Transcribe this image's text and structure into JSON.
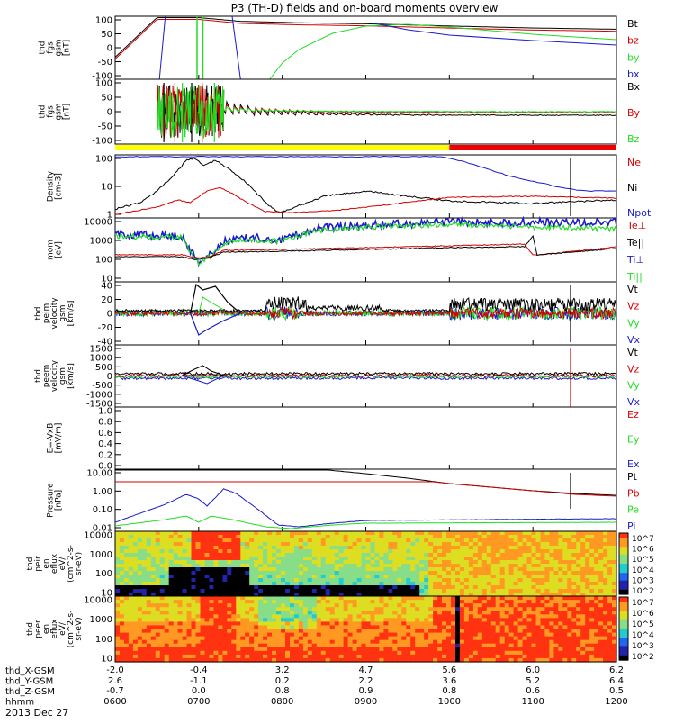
{
  "title": "P3 (TH-D) fields and on-board moments overview",
  "date_label": "2013 Dec 27",
  "colors": {
    "black": "#000000",
    "red": "#d40000",
    "green": "#22dd22",
    "blue": "#1a1acc",
    "yellow": "#ffff00",
    "bar_red": "#ee0000"
  },
  "time_axis": {
    "hhmm": [
      "0600",
      "0700",
      "0800",
      "0900",
      "1000",
      "1100",
      "1200"
    ],
    "x_gsm": [
      "-2.0",
      "-0.4",
      "3.2",
      "4.7",
      "5.6",
      "6.0",
      "6.2"
    ],
    "y_gsm": [
      "2.6",
      "-1.1",
      "0.2",
      "2.2",
      "3.6",
      "5.2",
      "6.4"
    ],
    "z_gsm": [
      "-0.7",
      "0.0",
      "0.8",
      "0.9",
      "0.8",
      "0.6",
      "0.5"
    ],
    "row_labels": [
      "thd_X-GSM",
      "thd_Y-GSM",
      "thd_Z-GSM",
      "hhmm"
    ]
  },
  "colorbar_labels": [
    "10^7",
    "10^6",
    "10^5",
    "10^4",
    "10^3",
    "10^2"
  ],
  "panels": [
    {
      "id": "fgs-gsm",
      "ylabel": [
        "thd",
        "fgs",
        "gsm",
        "[nT]"
      ],
      "yticks": [
        "100",
        "50",
        "0",
        "-50",
        "-100"
      ],
      "legend": [
        {
          "t": "Bt",
          "c": "black"
        },
        {
          "t": "bz",
          "c": "red"
        },
        {
          "t": "by",
          "c": "green"
        },
        {
          "t": "bx",
          "c": "blue"
        }
      ]
    },
    {
      "id": "fgs-gsm-bzoom",
      "ylabel": [
        "thd",
        "fgs",
        "gsm",
        "[nT]"
      ],
      "yticks": [
        "100",
        "50",
        "0",
        "-50",
        "-100"
      ],
      "legend": [
        {
          "t": "Bx",
          "c": "black"
        },
        {
          "t": "By",
          "c": "red"
        },
        {
          "t": "Bz",
          "c": "green"
        }
      ]
    },
    {
      "id": "density",
      "ylabel": [
        "Density",
        "[cm-3]"
      ],
      "yticks": [
        "100",
        "10",
        "1"
      ],
      "legend": [
        {
          "t": "Ne",
          "c": "red"
        },
        {
          "t": "Ni",
          "c": "black"
        },
        {
          "t": "Npot",
          "c": "blue"
        }
      ]
    },
    {
      "id": "temperature",
      "ylabel": [
        "mom",
        "[eV]"
      ],
      "yticks": [
        "10000",
        "1000",
        "100",
        "10"
      ],
      "legend": [
        {
          "t": "Te⊥",
          "c": "red"
        },
        {
          "t": "Te||",
          "c": "black"
        },
        {
          "t": "Ti⊥",
          "c": "blue"
        },
        {
          "t": "Ti||",
          "c": "green"
        }
      ]
    },
    {
      "id": "peim-velocity",
      "ylabel": [
        "thd",
        "peim",
        "velocity",
        "gsm",
        "[km/s]"
      ],
      "yticks": [
        "40",
        "20",
        "0",
        "-20",
        "-40"
      ],
      "legend": [
        {
          "t": "Vt",
          "c": "black"
        },
        {
          "t": "Vz",
          "c": "red"
        },
        {
          "t": "Vy",
          "c": "green"
        },
        {
          "t": "Vx",
          "c": "blue"
        }
      ]
    },
    {
      "id": "peem-velocity",
      "ylabel": [
        "thd",
        "peem",
        "velocity",
        "gsm",
        "[km/s]"
      ],
      "yticks": [
        "1500",
        "1000",
        "500",
        "0",
        "-500",
        "-1000",
        "-1500"
      ],
      "legend": [
        {
          "t": "Vt",
          "c": "black"
        },
        {
          "t": "Vz",
          "c": "red"
        },
        {
          "t": "Vy",
          "c": "green"
        },
        {
          "t": "Vx",
          "c": "blue"
        }
      ]
    },
    {
      "id": "efield",
      "ylabel": [
        "E=-VxB",
        "[mV/m]"
      ],
      "yticks": [
        "1.0",
        "0.8",
        "0.6",
        "0.4",
        "0.2",
        "0.0"
      ],
      "legend": [
        {
          "t": "Ez",
          "c": "red"
        },
        {
          "t": "Ey",
          "c": "green"
        },
        {
          "t": "Ex",
          "c": "blue"
        }
      ]
    },
    {
      "id": "pressure",
      "ylabel": [
        "Pressure",
        "[nPa]"
      ],
      "yticks": [
        "10.00",
        "1.00",
        "0.10",
        "0.01"
      ],
      "legend": [
        {
          "t": "Pt",
          "c": "black"
        },
        {
          "t": "Pb",
          "c": "red"
        },
        {
          "t": "Pe",
          "c": "green"
        },
        {
          "t": "Pi",
          "c": "blue"
        }
      ]
    },
    {
      "id": "peir-spec",
      "ylabel": [
        "thd",
        "peir",
        "en",
        "eflux",
        "eV/",
        "(cm^2-s-",
        "sr-eV)"
      ],
      "yticks": [
        "10000",
        "1000",
        "100",
        "10"
      ],
      "legend": []
    },
    {
      "id": "peer-spec",
      "ylabel": [
        "thd",
        "peer",
        "en",
        "eflux",
        "eV/",
        "(cm^2-s-",
        "sr-eV)"
      ],
      "yticks": [
        "10000",
        "1000",
        "100",
        "10"
      ],
      "legend": []
    }
  ],
  "chart_data": {
    "type": "line",
    "title": "P3 (TH-D) fields and on-board moments overview",
    "x": [
      "0600",
      "0700",
      "0800",
      "0900",
      "1000",
      "1100",
      "1200"
    ],
    "series": [
      {
        "name": "Bt",
        "values": [
          80,
          110,
          97,
          93,
          84,
          78,
          73
        ]
      },
      {
        "name": "bz",
        "values": [
          82,
          110,
          97,
          93,
          83,
          77,
          72
        ]
      },
      {
        "name": "by",
        "values": [
          -100,
          80,
          98,
          70,
          55,
          40,
          27
        ]
      },
      {
        "name": "bx",
        "values": [
          -100,
          100,
          60,
          35,
          25,
          18,
          12
        ]
      },
      {
        "name": "Ni",
        "values": [
          0.5,
          150,
          0.25,
          1,
          1.3,
          1.2,
          1.5
        ]
      },
      {
        "name": "Ne",
        "values": [
          0.4,
          3,
          0.35,
          1.1,
          2.5,
          2.4,
          2.3
        ]
      },
      {
        "name": "Npot",
        "values": [
          0.5,
          150,
          0.3,
          100,
          30,
          5,
          3
        ]
      },
      {
        "name": "Pb",
        "values": [
          0.001,
          0.002,
          10,
          5,
          3,
          2.2,
          1.8
        ]
      },
      {
        "name": "Pe",
        "values": [
          0.02,
          0.07,
          0.007,
          0.02,
          0.03,
          0.03,
          0.05
        ]
      },
      {
        "name": "Pi",
        "values": [
          0.05,
          1.5,
          0.01,
          0.01,
          0.01,
          0.01,
          0.01
        ]
      }
    ]
  }
}
